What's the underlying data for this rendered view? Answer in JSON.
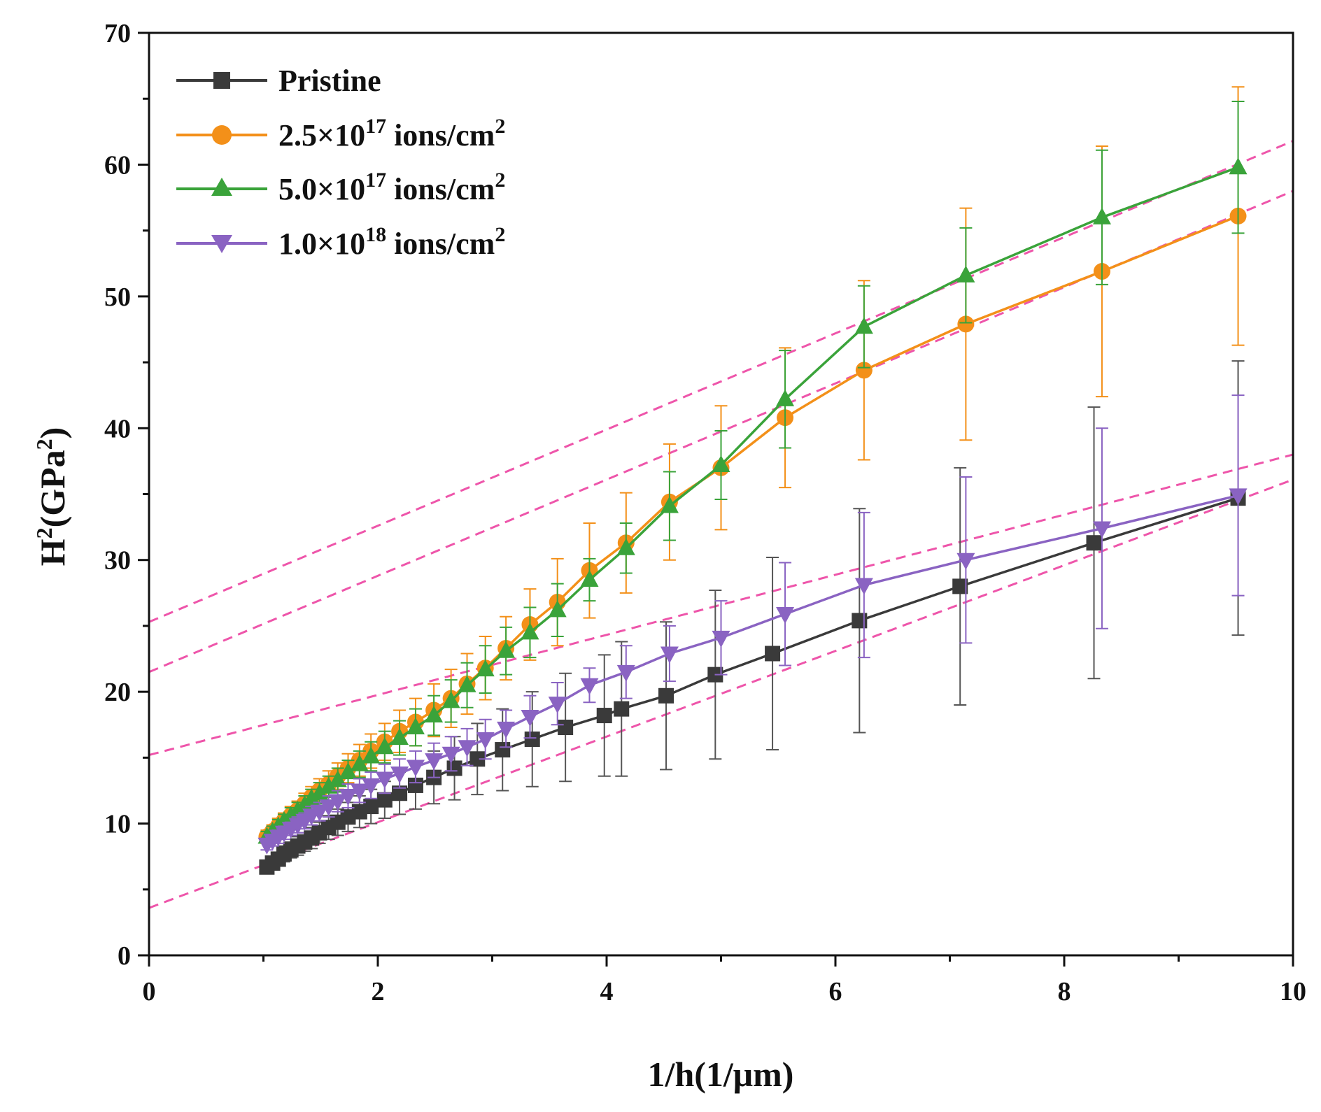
{
  "chart_data": {
    "type": "line",
    "title": "",
    "xlabel": "1/h(1/μm)",
    "ylabel_main": "H",
    "ylabel_sup": "2",
    "ylabel_rest": "(GPa",
    "ylabel_sup2": "2",
    "ylabel_close": ")",
    "xlim": [
      0,
      10
    ],
    "ylim": [
      0,
      70
    ],
    "x_ticks": [
      "0",
      "2",
      "4",
      "6",
      "8",
      "10"
    ],
    "y_ticks": [
      "0",
      "10",
      "20",
      "30",
      "40",
      "50",
      "60",
      "70"
    ],
    "legend_position": "top-left",
    "series": [
      {
        "name": "Pristine",
        "legend_main": "Pristine",
        "legend_sup": "",
        "legend_rest": "",
        "legend_sup2": "",
        "color": "#3a3a3a",
        "errcolor": "#555555",
        "marker": "square",
        "x": [
          1.03,
          1.08,
          1.13,
          1.18,
          1.24,
          1.3,
          1.36,
          1.42,
          1.49,
          1.57,
          1.65,
          1.74,
          1.84,
          1.94,
          2.06,
          2.19,
          2.33,
          2.49,
          2.67,
          2.87,
          3.09,
          3.35,
          3.64,
          3.98,
          4.13,
          4.52,
          4.95,
          5.45,
          6.21,
          7.09,
          8.26,
          9.52
        ],
        "y": [
          6.7,
          7.0,
          7.3,
          7.7,
          8.0,
          8.3,
          8.6,
          8.9,
          9.3,
          9.7,
          10.1,
          10.5,
          10.9,
          11.3,
          11.8,
          12.3,
          12.9,
          13.5,
          14.2,
          14.9,
          15.6,
          16.4,
          17.3,
          18.2,
          18.7,
          19.7,
          21.3,
          22.9,
          25.4,
          28.0,
          31.3,
          34.7
        ],
        "err": [
          0.4,
          0.5,
          0.5,
          0.6,
          0.6,
          0.7,
          0.7,
          0.8,
          0.8,
          0.9,
          1.0,
          1.1,
          1.2,
          1.3,
          1.4,
          1.6,
          1.8,
          2.0,
          2.4,
          2.7,
          3.1,
          3.6,
          4.1,
          4.6,
          5.1,
          5.6,
          6.4,
          7.3,
          8.5,
          9.0,
          10.3,
          10.4
        ]
      },
      {
        "name": "2.5×10^17 ions/cm^2",
        "legend_main": "2.5×10",
        "legend_sup": "17",
        "legend_rest": " ions/cm",
        "legend_sup2": "2",
        "color": "#f39019",
        "errcolor": "#f39019",
        "marker": "circle",
        "x": [
          1.03,
          1.08,
          1.13,
          1.18,
          1.24,
          1.3,
          1.36,
          1.42,
          1.49,
          1.57,
          1.65,
          1.74,
          1.84,
          1.94,
          2.06,
          2.19,
          2.33,
          2.49,
          2.64,
          2.78,
          2.94,
          3.12,
          3.33,
          3.57,
          3.85,
          4.17,
          4.55,
          5.0,
          5.56,
          6.25,
          7.14,
          8.33,
          9.52
        ],
        "y": [
          9.0,
          9.4,
          9.8,
          10.2,
          10.6,
          11.0,
          11.5,
          12.0,
          12.5,
          13.0,
          13.6,
          14.2,
          14.8,
          15.5,
          16.2,
          17.0,
          17.7,
          18.6,
          19.5,
          20.6,
          21.8,
          23.3,
          25.1,
          26.8,
          29.2,
          31.3,
          34.4,
          37.0,
          40.8,
          44.4,
          47.9,
          51.9,
          56.1
        ],
        "err": [
          0.5,
          0.5,
          0.6,
          0.6,
          0.7,
          0.7,
          0.8,
          0.8,
          0.9,
          1.0,
          1.0,
          1.1,
          1.2,
          1.3,
          1.4,
          1.6,
          1.8,
          2.0,
          2.2,
          2.3,
          2.4,
          2.4,
          2.7,
          3.3,
          3.6,
          3.8,
          4.4,
          4.7,
          5.3,
          6.8,
          8.8,
          9.5,
          9.8
        ]
      },
      {
        "name": "5.0×10^17 ions/cm^2",
        "legend_main": "5.0×10",
        "legend_sup": "17",
        "legend_rest": " ions/cm",
        "legend_sup2": "2",
        "color": "#3aa33a",
        "errcolor": "#3aa33a",
        "marker": "triangle-up",
        "x": [
          1.03,
          1.08,
          1.13,
          1.18,
          1.24,
          1.3,
          1.36,
          1.42,
          1.49,
          1.57,
          1.65,
          1.74,
          1.84,
          1.94,
          2.06,
          2.19,
          2.33,
          2.49,
          2.64,
          2.78,
          2.94,
          3.12,
          3.33,
          3.57,
          3.85,
          4.17,
          4.55,
          5.0,
          5.56,
          6.25,
          7.14,
          8.33,
          9.52
        ],
        "y": [
          9.0,
          9.4,
          9.8,
          10.2,
          10.6,
          11.0,
          11.4,
          11.9,
          12.3,
          12.8,
          13.3,
          13.9,
          14.5,
          15.1,
          15.8,
          16.5,
          17.3,
          18.2,
          19.3,
          20.5,
          21.7,
          23.1,
          24.5,
          26.2,
          28.5,
          30.9,
          34.1,
          37.2,
          42.2,
          47.7,
          51.6,
          56.0,
          59.8
        ],
        "err": [
          0.4,
          0.4,
          0.5,
          0.5,
          0.6,
          0.6,
          0.7,
          0.7,
          0.8,
          0.8,
          0.9,
          0.9,
          1.0,
          1.1,
          1.2,
          1.3,
          1.4,
          1.5,
          1.6,
          1.7,
          1.8,
          1.8,
          1.9,
          2.0,
          1.6,
          1.9,
          2.6,
          2.6,
          3.7,
          3.1,
          3.6,
          5.1,
          5.0
        ]
      },
      {
        "name": "1.0×10^18 ions/cm^2",
        "legend_main": "1.0×10",
        "legend_sup": "18",
        "legend_rest": " ions/cm",
        "legend_sup2": "2",
        "color": "#8a63c2",
        "errcolor": "#8a63c2",
        "marker": "triangle-down",
        "x": [
          1.03,
          1.08,
          1.13,
          1.18,
          1.24,
          1.3,
          1.36,
          1.42,
          1.49,
          1.57,
          1.65,
          1.74,
          1.84,
          1.94,
          2.06,
          2.19,
          2.33,
          2.49,
          2.64,
          2.78,
          2.94,
          3.12,
          3.33,
          3.57,
          3.85,
          4.17,
          4.55,
          5.0,
          5.56,
          6.25,
          7.14,
          8.33,
          9.52
        ],
        "y": [
          8.4,
          8.7,
          9.0,
          9.3,
          9.6,
          9.9,
          10.2,
          10.6,
          10.9,
          11.3,
          11.7,
          12.1,
          12.5,
          12.9,
          13.4,
          13.8,
          14.3,
          14.8,
          15.3,
          15.8,
          16.4,
          17.2,
          18.1,
          19.1,
          20.5,
          21.5,
          22.9,
          24.1,
          25.9,
          28.1,
          30.0,
          32.4,
          34.9
        ],
        "err": [
          0.4,
          0.4,
          0.5,
          0.5,
          0.5,
          0.6,
          0.6,
          0.7,
          0.7,
          0.8,
          0.8,
          0.9,
          0.9,
          1.0,
          1.1,
          1.1,
          1.2,
          1.3,
          1.3,
          1.4,
          1.5,
          1.4,
          1.6,
          1.6,
          1.3,
          2.0,
          2.1,
          2.8,
          3.9,
          5.5,
          6.3,
          7.6,
          7.6
        ]
      }
    ],
    "fit_lines": [
      {
        "intercept": 25.3,
        "slope": 3.65
      },
      {
        "intercept": 21.5,
        "slope": 3.65
      },
      {
        "intercept": 15.2,
        "slope": 2.28
      },
      {
        "intercept": 3.6,
        "slope": 3.25
      }
    ],
    "fit_color": "#ee55aa"
  }
}
